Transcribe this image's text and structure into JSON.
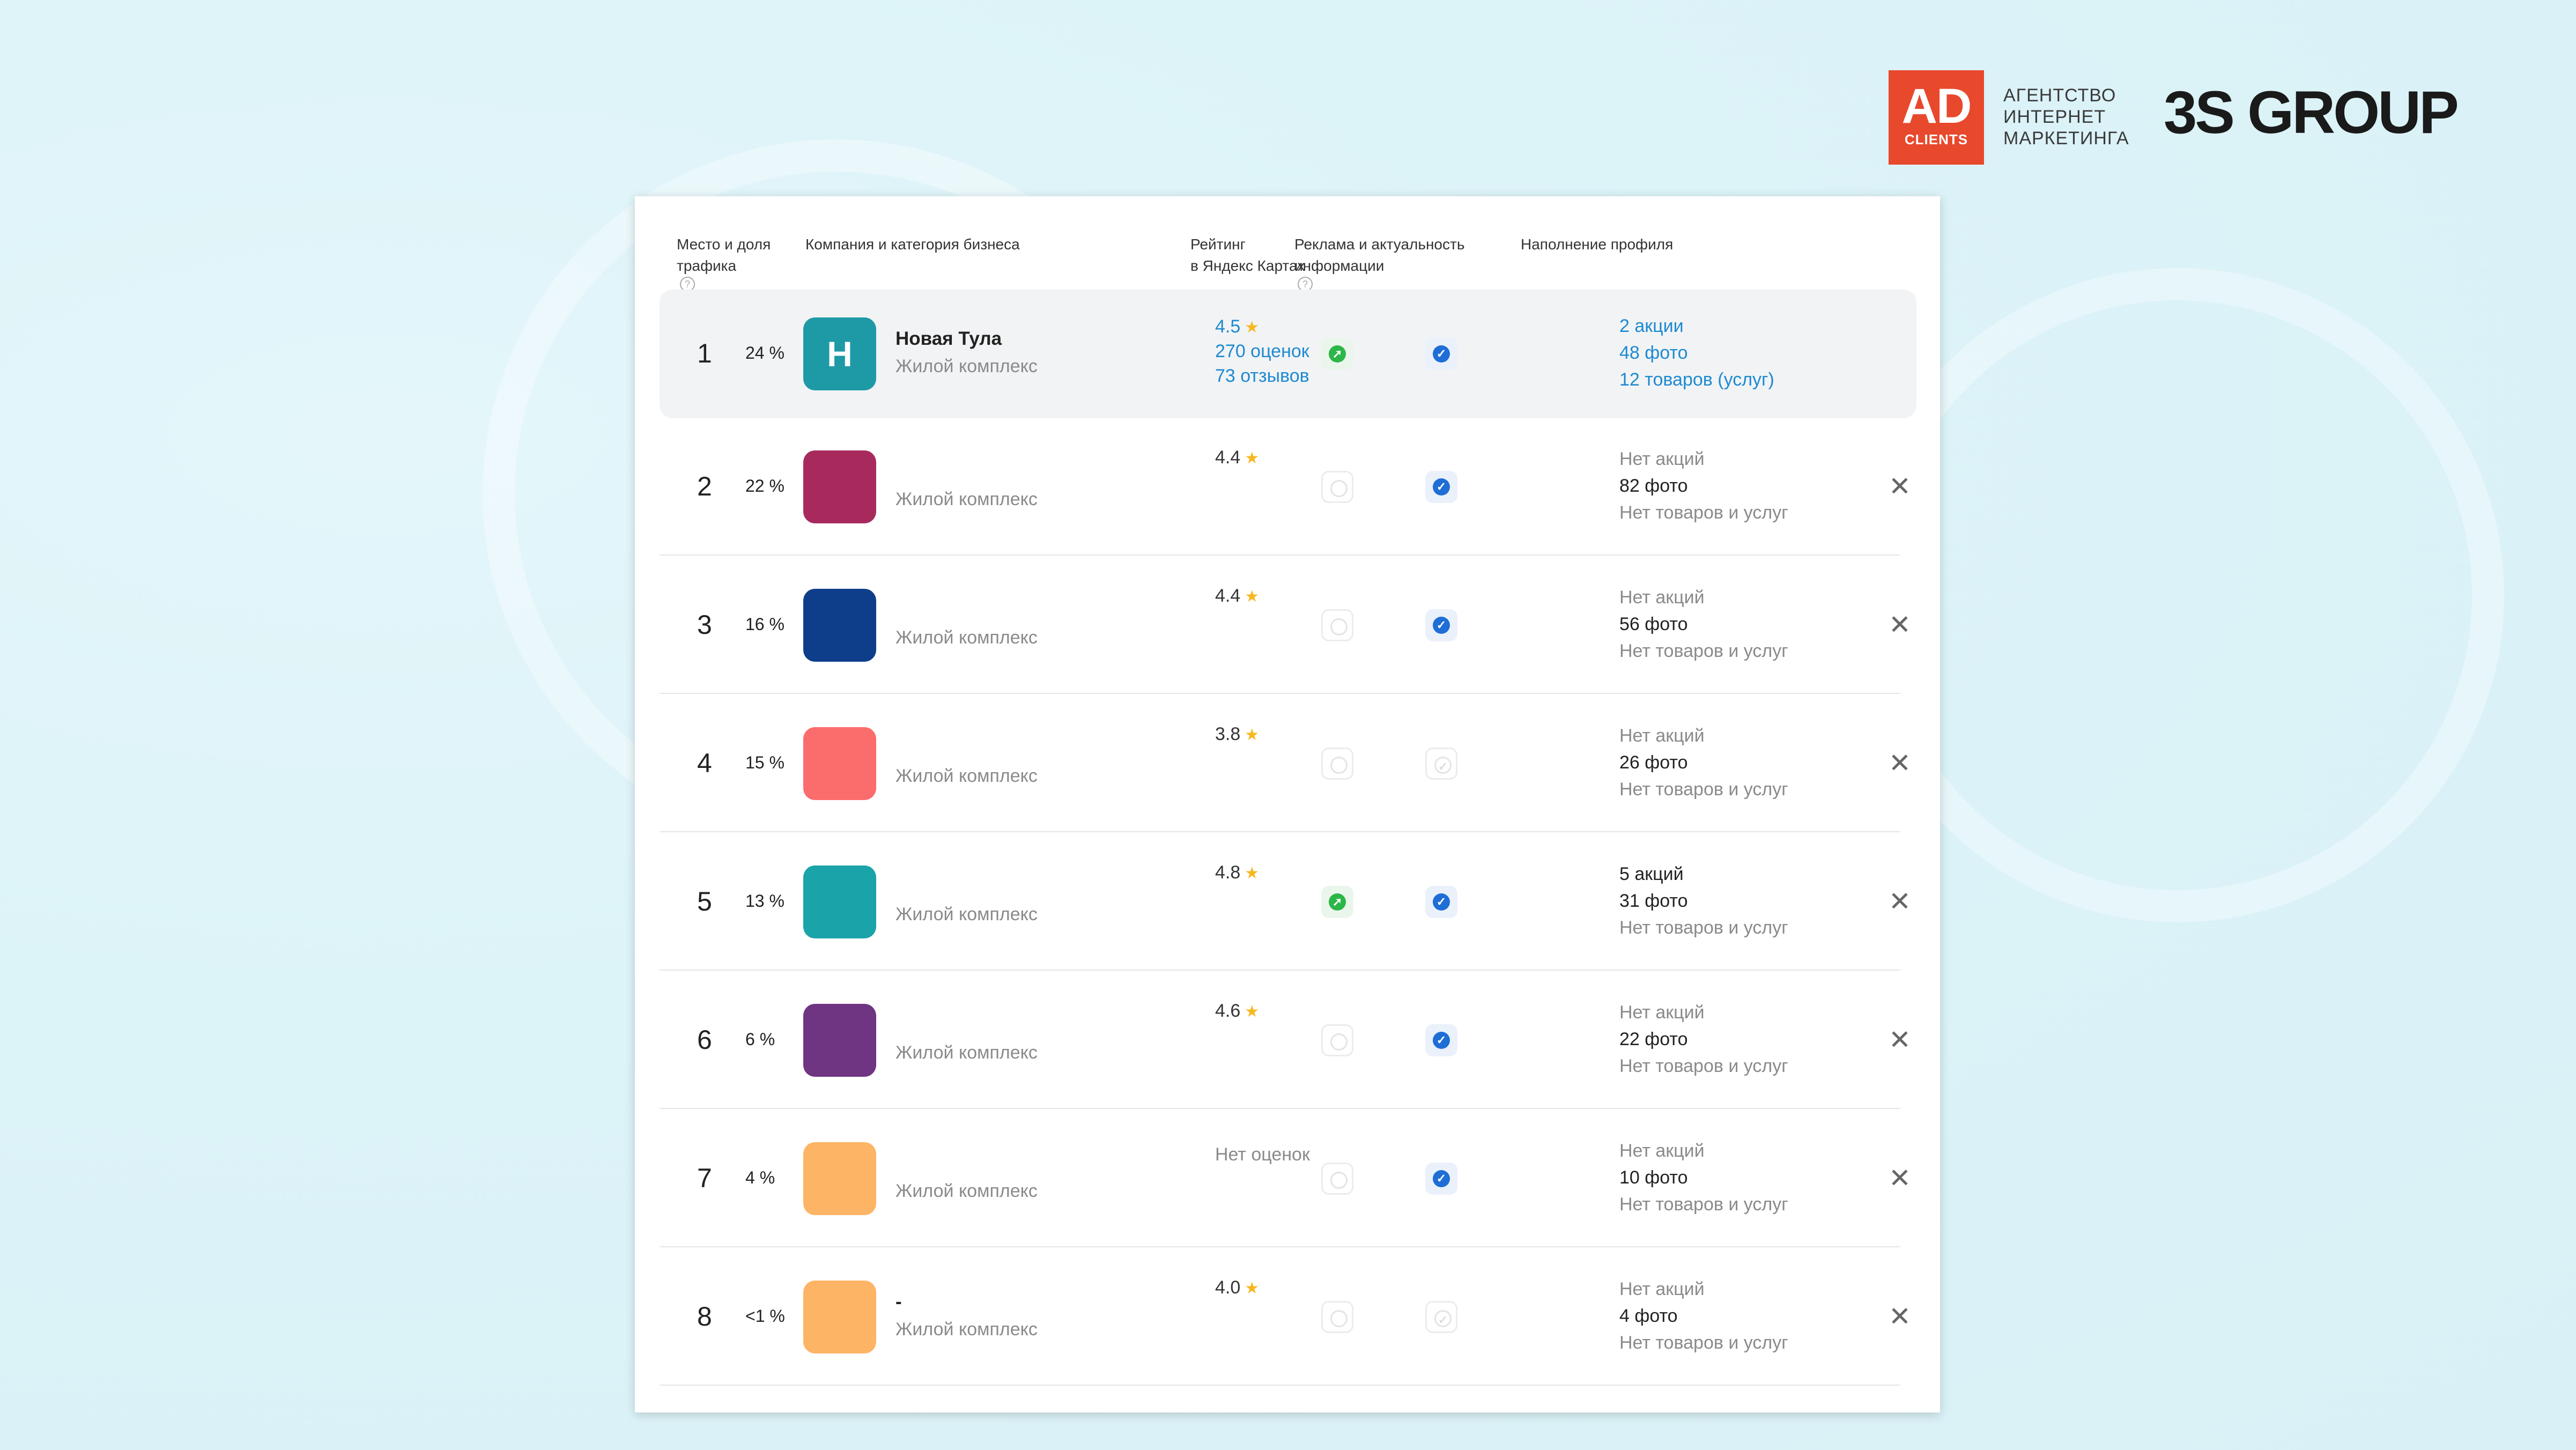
{
  "branding": {
    "ad_main": "AD",
    "ad_sub": "CLIENTS",
    "agency_lines": [
      "АГЕНТСТВО",
      "ИНТЕРНЕТ",
      "МАРКЕТИНГА"
    ],
    "group_name": "3S GROUP"
  },
  "table": {
    "headers": {
      "place": [
        "Место и доля",
        "трафика"
      ],
      "company": "Компания и категория бизнеса",
      "rating": [
        "Рейтинг",
        "в Яндекс Картах"
      ],
      "ads": [
        "Реклама и актуальность",
        "информации"
      ],
      "profile": "Наполнение профиля"
    },
    "rows": [
      {
        "num": "1",
        "share": "24 %",
        "avatar_letter": "Н",
        "avatar_color": "#1e9aa6",
        "name": "Новая Тула",
        "category": "Жилой комплекс",
        "rating": "4.5",
        "ratings_count": "270 оценок",
        "reviews": "73 отзывов",
        "ad": "green",
        "verified": "blue",
        "profile": [
          "2 акции",
          "48 фото",
          "12 товаров (услуг)"
        ]
      },
      {
        "num": "2",
        "share": "22 %",
        "avatar_letter": "",
        "avatar_color": "#a82a5c",
        "name": "",
        "category": "Жилой комплекс",
        "rating": "4.4",
        "ad": "off",
        "verified": "blue",
        "profile": [
          "Нет акций",
          "82 фото",
          "Нет товаров и услуг"
        ]
      },
      {
        "num": "3",
        "share": "16 %",
        "avatar_letter": "",
        "avatar_color": "#0e3e8a",
        "name": "",
        "category": "Жилой комплекс",
        "rating": "4.4",
        "ad": "off",
        "verified": "blue",
        "profile": [
          "Нет акций",
          "56 фото",
          "Нет товаров и услуг"
        ]
      },
      {
        "num": "4",
        "share": "15 %",
        "avatar_letter": "",
        "avatar_color": "#fb6c6c",
        "name": "",
        "category": "Жилой комплекс",
        "rating": "3.8",
        "ad": "off",
        "verified": "off",
        "profile": [
          "Нет акций",
          "26 фото",
          "Нет товаров и услуг"
        ]
      },
      {
        "num": "5",
        "share": "13 %",
        "avatar_letter": "",
        "avatar_color": "#1aa3a8",
        "name": "",
        "category": "Жилой комплекс",
        "rating": "4.8",
        "ad": "green",
        "verified": "blue",
        "profile": [
          "5 акций",
          "31 фото",
          "Нет товаров и услуг"
        ]
      },
      {
        "num": "6",
        "share": "6 %",
        "avatar_letter": "",
        "avatar_color": "#6f3482",
        "name": "",
        "category": "Жилой комплекс",
        "rating": "4.6",
        "ad": "off",
        "verified": "blue",
        "profile": [
          "Нет акций",
          "22 фото",
          "Нет товаров и услуг"
        ]
      },
      {
        "num": "7",
        "share": "4 %",
        "avatar_letter": "",
        "avatar_color": "#fdb465",
        "name": "",
        "category": "Жилой комплекс",
        "rating": "Нет оценок",
        "ad": "off",
        "verified": "blue",
        "profile": [
          "Нет акций",
          "10 фото",
          "Нет товаров и услуг"
        ]
      },
      {
        "num": "8",
        "share": "<1 %",
        "avatar_letter": "",
        "avatar_color": "#fdb465",
        "name": "-",
        "category": "Жилой комплекс",
        "rating": "4.0",
        "ad": "off",
        "verified": "off",
        "profile": [
          "Нет акций",
          "4 фото",
          "Нет товаров и услуг"
        ]
      }
    ],
    "close_symbol": "✕",
    "star": "★"
  }
}
